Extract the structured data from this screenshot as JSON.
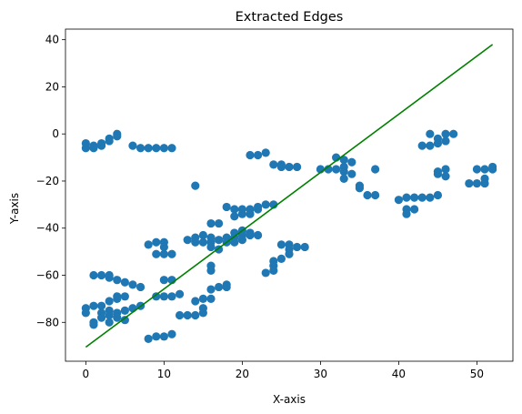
{
  "chart_data": {
    "type": "scatter",
    "title": "Extracted Edges",
    "xlabel": "X-axis",
    "ylabel": "Y-axis",
    "xlim": [
      -2.6,
      54.6
    ],
    "ylim": [
      -96.5,
      44.5
    ],
    "xticks": [
      0,
      10,
      20,
      30,
      40,
      50
    ],
    "yticks": [
      -80,
      -60,
      -40,
      -20,
      0,
      20,
      40
    ],
    "xtick_labels": [
      "0",
      "10",
      "20",
      "30",
      "40",
      "50"
    ],
    "ytick_labels": [
      "−80",
      "−60",
      "−40",
      "−20",
      "0",
      "20",
      "40"
    ],
    "grid": false,
    "series": [
      {
        "kind": "points",
        "color": "#1f77b4",
        "points": [
          [
            0,
            -4
          ],
          [
            0,
            -6
          ],
          [
            1,
            -5
          ],
          [
            1,
            -6
          ],
          [
            2,
            -4
          ],
          [
            2,
            -5
          ],
          [
            3,
            -2
          ],
          [
            3,
            -3
          ],
          [
            4,
            0
          ],
          [
            4,
            -1
          ],
          [
            6,
            -5
          ],
          [
            7,
            -6
          ],
          [
            8,
            -6
          ],
          [
            9,
            -6
          ],
          [
            10,
            -6
          ],
          [
            11,
            -6
          ],
          [
            14,
            -22
          ],
          [
            21,
            -9
          ],
          [
            22,
            -9
          ],
          [
            23,
            -8
          ],
          [
            24,
            -13
          ],
          [
            25,
            -13
          ],
          [
            25,
            -14
          ],
          [
            26,
            -14
          ],
          [
            27,
            -14
          ],
          [
            30,
            -15
          ],
          [
            31,
            -15
          ],
          [
            32,
            -10
          ],
          [
            32,
            -15
          ],
          [
            33,
            -11
          ],
          [
            33,
            -14
          ],
          [
            33,
            -16
          ],
          [
            33,
            -19
          ],
          [
            34,
            -12
          ],
          [
            34,
            -17
          ],
          [
            35,
            -22
          ],
          [
            35,
            -23
          ],
          [
            36,
            -26
          ],
          [
            37,
            -15
          ],
          [
            37,
            -26
          ],
          [
            40,
            -28
          ],
          [
            41,
            -27
          ],
          [
            41,
            -32
          ],
          [
            41,
            -34
          ],
          [
            42,
            -27
          ],
          [
            42,
            -32
          ],
          [
            43,
            -5
          ],
          [
            43,
            -27
          ],
          [
            44,
            0
          ],
          [
            44,
            -5
          ],
          [
            44,
            -27
          ],
          [
            45,
            -2
          ],
          [
            45,
            -4
          ],
          [
            45,
            -16
          ],
          [
            45,
            -17
          ],
          [
            45,
            -26
          ],
          [
            46,
            0
          ],
          [
            46,
            -3
          ],
          [
            46,
            -15
          ],
          [
            46,
            -18
          ],
          [
            47,
            0
          ],
          [
            49,
            -21
          ],
          [
            50,
            -15
          ],
          [
            50,
            -21
          ],
          [
            51,
            -15
          ],
          [
            51,
            -19
          ],
          [
            51,
            -21
          ],
          [
            52,
            -14
          ],
          [
            52,
            -15
          ],
          [
            0,
            -74
          ],
          [
            0,
            -76
          ],
          [
            1,
            -60
          ],
          [
            1,
            -73
          ],
          [
            1,
            -80
          ],
          [
            1,
            -81
          ],
          [
            2,
            -60
          ],
          [
            2,
            -73
          ],
          [
            2,
            -76
          ],
          [
            2,
            -78
          ],
          [
            3,
            -60
          ],
          [
            3,
            -61
          ],
          [
            3,
            -71
          ],
          [
            3,
            -75
          ],
          [
            3,
            -77
          ],
          [
            3,
            -80
          ],
          [
            4,
            -62
          ],
          [
            4,
            -69
          ],
          [
            4,
            -70
          ],
          [
            4,
            -76
          ],
          [
            4,
            -78
          ],
          [
            5,
            -63
          ],
          [
            5,
            -69
          ],
          [
            5,
            -75
          ],
          [
            5,
            -79
          ],
          [
            6,
            -64
          ],
          [
            6,
            -74
          ],
          [
            7,
            -65
          ],
          [
            7,
            -73
          ],
          [
            8,
            -47
          ],
          [
            8,
            -87
          ],
          [
            9,
            -46
          ],
          [
            9,
            -51
          ],
          [
            9,
            -69
          ],
          [
            9,
            -86
          ],
          [
            10,
            -46
          ],
          [
            10,
            -48
          ],
          [
            10,
            -51
          ],
          [
            10,
            -62
          ],
          [
            10,
            -69
          ],
          [
            10,
            -86
          ],
          [
            11,
            -51
          ],
          [
            11,
            -62
          ],
          [
            11,
            -69
          ],
          [
            11,
            -85
          ],
          [
            12,
            -68
          ],
          [
            12,
            -77
          ],
          [
            13,
            -45
          ],
          [
            13,
            -77
          ],
          [
            14,
            -44
          ],
          [
            14,
            -46
          ],
          [
            14,
            -71
          ],
          [
            14,
            -77
          ],
          [
            15,
            -43
          ],
          [
            15,
            -46
          ],
          [
            15,
            -70
          ],
          [
            15,
            -74
          ],
          [
            15,
            -76
          ],
          [
            16,
            -38
          ],
          [
            16,
            -44
          ],
          [
            16,
            -46
          ],
          [
            16,
            -48
          ],
          [
            16,
            -56
          ],
          [
            16,
            -58
          ],
          [
            16,
            -66
          ],
          [
            16,
            -70
          ],
          [
            17,
            -38
          ],
          [
            17,
            -45
          ],
          [
            17,
            -49
          ],
          [
            17,
            -65
          ],
          [
            18,
            -31
          ],
          [
            18,
            -44
          ],
          [
            18,
            -46
          ],
          [
            18,
            -64
          ],
          [
            18,
            -65
          ],
          [
            19,
            -32
          ],
          [
            19,
            -35
          ],
          [
            19,
            -42
          ],
          [
            19,
            -44
          ],
          [
            19,
            -46
          ],
          [
            20,
            -32
          ],
          [
            20,
            -34
          ],
          [
            20,
            -41
          ],
          [
            20,
            -43
          ],
          [
            20,
            -45
          ],
          [
            21,
            -32
          ],
          [
            21,
            -34
          ],
          [
            21,
            -42
          ],
          [
            21,
            -43
          ],
          [
            22,
            -31
          ],
          [
            22,
            -32
          ],
          [
            22,
            -43
          ],
          [
            23,
            -30
          ],
          [
            23,
            -59
          ],
          [
            24,
            -30
          ],
          [
            24,
            -54
          ],
          [
            24,
            -56
          ],
          [
            24,
            -58
          ],
          [
            25,
            -47
          ],
          [
            25,
            -53
          ],
          [
            26,
            -47
          ],
          [
            26,
            -49
          ],
          [
            26,
            -51
          ],
          [
            27,
            -48
          ],
          [
            28,
            -48
          ]
        ]
      },
      {
        "kind": "line",
        "color": "#008000",
        "points": [
          [
            0,
            -90.5
          ],
          [
            52,
            38
          ]
        ]
      }
    ]
  }
}
